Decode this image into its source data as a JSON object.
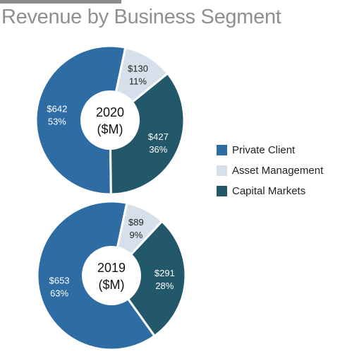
{
  "chart_data": {
    "type": "pie",
    "title": "Revenue by Business Segment",
    "legend_placement": "right",
    "series_names": [
      "Private Client",
      "Asset Management",
      "Capital Markets"
    ],
    "colors": [
      "#2e6da3",
      "#d6e0ea",
      "#23586a"
    ],
    "charts": [
      {
        "center_label": [
          "2020",
          "($M)"
        ],
        "slices": [
          {
            "name": "Private Client",
            "value": 642,
            "percent": 53,
            "value_label": "$642",
            "percent_label": "53%"
          },
          {
            "name": "Asset Management",
            "value": 130,
            "percent": 11,
            "value_label": "$130",
            "percent_label": "11%"
          },
          {
            "name": "Capital Markets",
            "value": 427,
            "percent": 36,
            "value_label": "$427",
            "percent_label": "36%"
          }
        ]
      },
      {
        "center_label": [
          "2019",
          "($M)"
        ],
        "slices": [
          {
            "name": "Private Client",
            "value": 653,
            "percent": 63,
            "value_label": "$653",
            "percent_label": "63%"
          },
          {
            "name": "Asset Management",
            "value": 89,
            "percent": 9,
            "value_label": "$89",
            "percent_label": "9%"
          },
          {
            "name": "Capital Markets",
            "value": 291,
            "percent": 28,
            "value_label": "$291",
            "percent_label": "28%"
          }
        ]
      }
    ]
  }
}
